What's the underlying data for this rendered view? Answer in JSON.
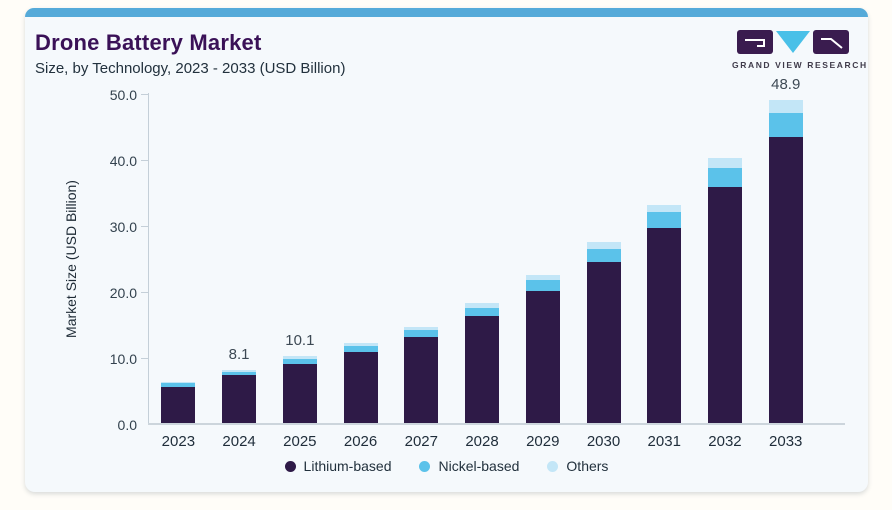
{
  "header": {
    "title": "Drone Battery Market",
    "subtitle": "Size, by Technology, 2023 - 2033 (USD Billion)"
  },
  "logo": {
    "text": "GRAND VIEW RESEARCH",
    "block_color": "#3a1c4f",
    "triangle_color": "#49c0e8"
  },
  "colors": {
    "card_background": "#f5f9fc",
    "card_top_accent": "#55aad9",
    "title_purple": "#3a1157",
    "axis": "#c4cfd8"
  },
  "chart_data": {
    "type": "bar",
    "stacked": true,
    "title": "Drone Battery Market",
    "subtitle": "Size, by Technology, 2023 - 2033 (USD Billion)",
    "xlabel": "",
    "ylabel": "Market Size (USD Billion)",
    "ylim": [
      0,
      50
    ],
    "yticks": [
      0,
      10,
      20,
      30,
      40,
      50
    ],
    "ytick_labels": [
      "0.0",
      "10.0",
      "20.0",
      "30.0",
      "40.0",
      "50.0"
    ],
    "grid": false,
    "legend_position": "bottom",
    "categories": [
      "2023",
      "2024",
      "2025",
      "2026",
      "2027",
      "2028",
      "2029",
      "2030",
      "2031",
      "2032",
      "2033"
    ],
    "series": [
      {
        "name": "Lithium-based",
        "color": "#2e1a47",
        "values": [
          5.5,
          7.2,
          9.0,
          10.7,
          13.0,
          16.2,
          20.0,
          24.4,
          29.5,
          35.8,
          43.4
        ]
      },
      {
        "name": "Nickel-based",
        "color": "#5bc2ea",
        "values": [
          0.5,
          0.6,
          0.7,
          0.9,
          1.1,
          1.3,
          1.6,
          2.0,
          2.4,
          2.9,
          3.6
        ]
      },
      {
        "name": "Others",
        "color": "#c3e6f7",
        "values": [
          0.2,
          0.3,
          0.4,
          0.5,
          0.5,
          0.7,
          0.9,
          1.0,
          1.2,
          1.4,
          1.9
        ]
      }
    ],
    "shown_total_labels": {
      "2024": "8.1",
      "2025": "10.1",
      "2033": "48.9"
    }
  }
}
